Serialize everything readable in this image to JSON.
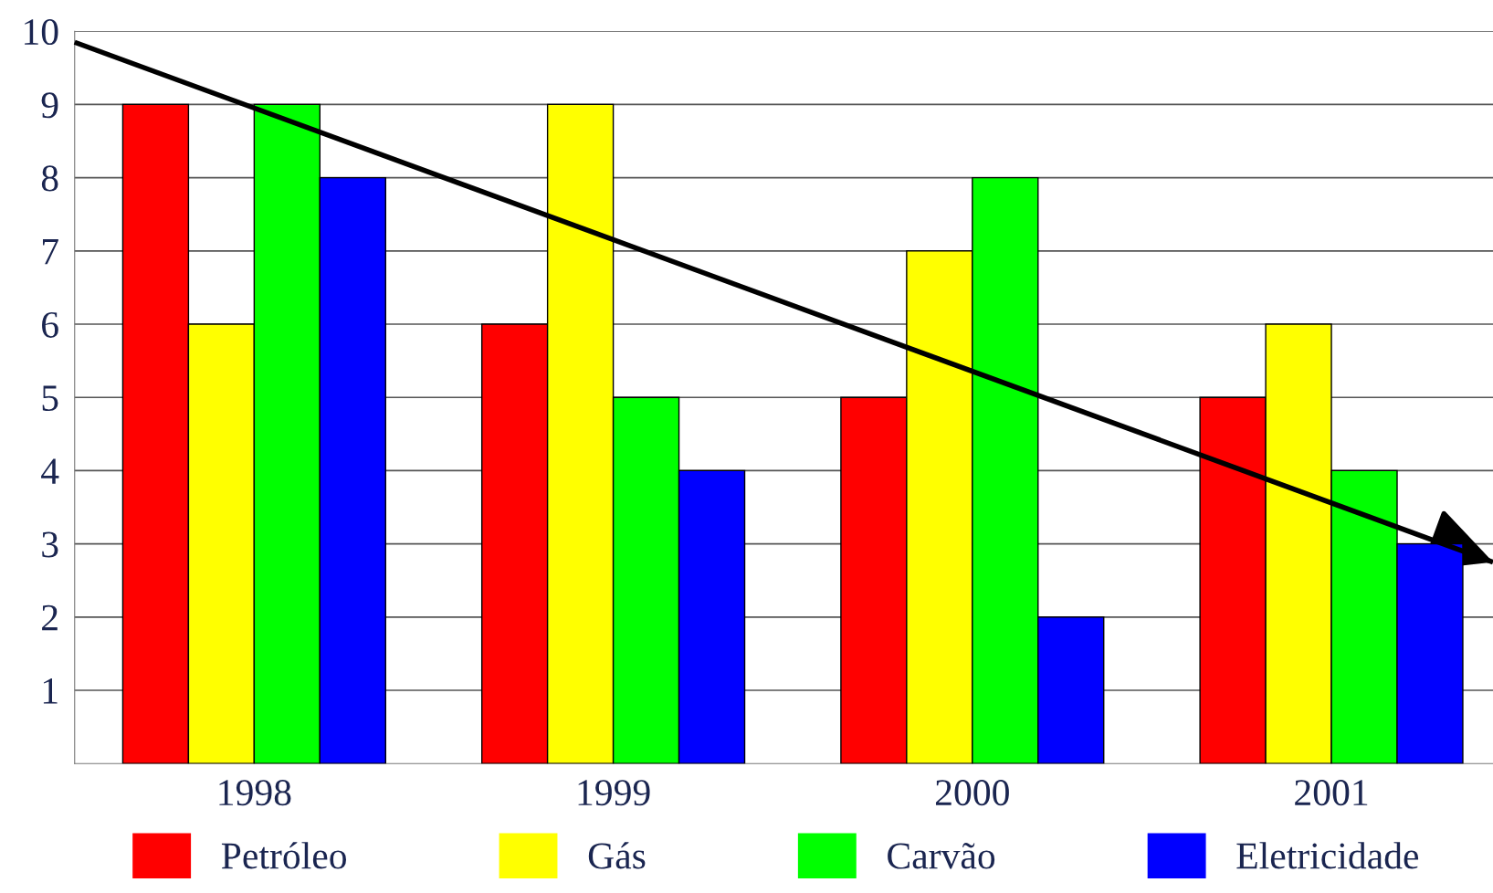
{
  "chart_data": {
    "type": "bar",
    "x": [
      1998,
      1999,
      2000,
      2001
    ],
    "series": [
      {
        "name": "Petróleo",
        "color": "#ff0000",
        "values": [
          9,
          6,
          5,
          5
        ]
      },
      {
        "name": "Gás",
        "color": "#ffff00",
        "values": [
          6,
          9,
          7,
          6
        ]
      },
      {
        "name": "Carvão",
        "color": "#00ff00",
        "values": [
          9,
          5,
          8,
          4
        ]
      },
      {
        "name": "Eletricidade",
        "color": "#0000ff",
        "values": [
          8,
          4,
          2,
          3
        ]
      },
      {
        "type": "line",
        "color": "#000000",
        "x": [
          1997.5,
          2001.45
        ],
        "values": [
          9.85,
          2.75
        ]
      }
    ],
    "xlim": [
      1997.5,
      2001.45
    ],
    "xticks": [
      1998,
      1999,
      2000,
      2001
    ],
    "ylim": [
      0,
      10
    ],
    "yticks": [
      1,
      2,
      3,
      4,
      5,
      6,
      7,
      8,
      9,
      10
    ],
    "grid": "y",
    "legend": "bottom"
  }
}
